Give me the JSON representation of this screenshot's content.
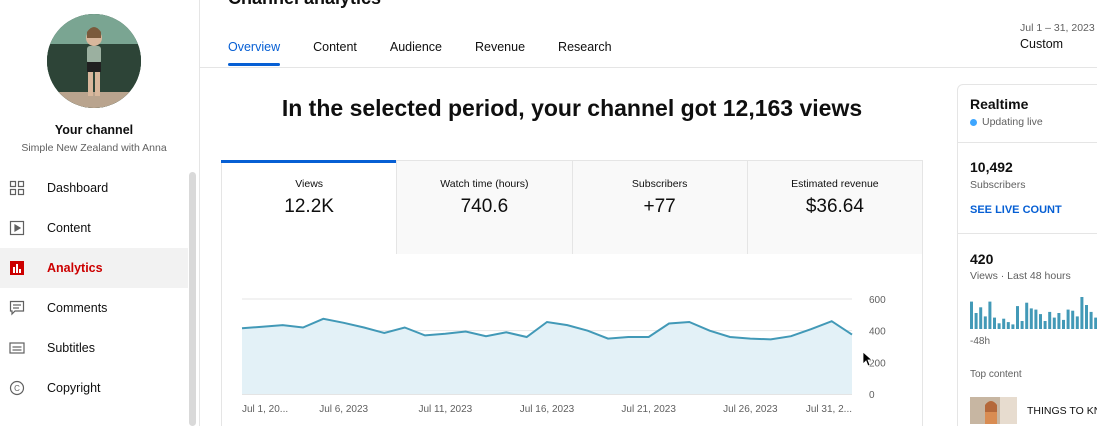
{
  "sidebar": {
    "channel_title": "Your channel",
    "channel_name": "Simple New Zealand with Anna",
    "items": [
      {
        "label": "Dashboard",
        "icon": "dashboard-icon",
        "active": false
      },
      {
        "label": "Content",
        "icon": "content-icon",
        "active": false
      },
      {
        "label": "Analytics",
        "icon": "analytics-icon",
        "active": true
      },
      {
        "label": "Comments",
        "icon": "comments-icon",
        "active": false
      },
      {
        "label": "Subtitles",
        "icon": "subtitles-icon",
        "active": false
      },
      {
        "label": "Copyright",
        "icon": "copyright-icon",
        "active": false
      }
    ]
  },
  "header": {
    "title": "Channel analytics",
    "tabs": [
      "Overview",
      "Content",
      "Audience",
      "Revenue",
      "Research"
    ],
    "active_tab": "Overview",
    "date_range": "Jul 1 – 31, 2023",
    "date_preset": "Custom"
  },
  "main": {
    "headline": "In the selected period, your channel got 12,163 views",
    "metrics": [
      {
        "label": "Views",
        "value": "12.2K"
      },
      {
        "label": "Watch time (hours)",
        "value": "740.6"
      },
      {
        "label": "Subscribers",
        "value": "+77"
      },
      {
        "label": "Estimated revenue",
        "value": "$36.64"
      }
    ]
  },
  "chart_data": {
    "type": "area",
    "x_tick_labels": [
      "Jul 1, 20...",
      "Jul 6, 2023",
      "Jul 11, 2023",
      "Jul 16, 2023",
      "Jul 21, 2023",
      "Jul 26, 2023",
      "Jul 31, 2..."
    ],
    "y_tick_labels": [
      "600",
      "400",
      "200",
      "0"
    ],
    "ylim": [
      0,
      600
    ],
    "x": [
      "Jul 1",
      "Jul 2",
      "Jul 3",
      "Jul 4",
      "Jul 5",
      "Jul 6",
      "Jul 7",
      "Jul 8",
      "Jul 9",
      "Jul 10",
      "Jul 11",
      "Jul 12",
      "Jul 13",
      "Jul 14",
      "Jul 15",
      "Jul 16",
      "Jul 17",
      "Jul 18",
      "Jul 19",
      "Jul 20",
      "Jul 21",
      "Jul 22",
      "Jul 23",
      "Jul 24",
      "Jul 25",
      "Jul 26",
      "Jul 27",
      "Jul 28",
      "Jul 29",
      "Jul 30",
      "Jul 31"
    ],
    "series": [
      {
        "values": [
          415,
          425,
          435,
          420,
          475,
          450,
          420,
          385,
          420,
          370,
          380,
          395,
          365,
          390,
          360,
          455,
          435,
          400,
          350,
          360,
          360,
          445,
          455,
          400,
          360,
          350,
          345,
          365,
          410,
          460,
          375
        ]
      }
    ],
    "color": "#4299b7",
    "fill": "#e3f1f7",
    "grid": true
  },
  "realtime": {
    "title": "Realtime",
    "status": "Updating live",
    "subscribers_value": "10,492",
    "subscribers_label": "Subscribers",
    "live_count_link": "SEE LIVE COUNT",
    "views_value": "420",
    "views_label": "Views · Last 48 hours",
    "axis_label": "-48h",
    "hourly_bars": [
      24,
      14,
      19,
      11,
      24,
      10,
      5,
      9,
      6,
      4,
      20,
      7,
      23,
      18,
      17,
      13,
      7,
      15,
      10,
      14,
      8,
      17,
      16,
      11,
      28,
      21,
      15,
      10
    ],
    "top_content_label": "Top content",
    "top_content_title": "THINGS TO KN"
  }
}
